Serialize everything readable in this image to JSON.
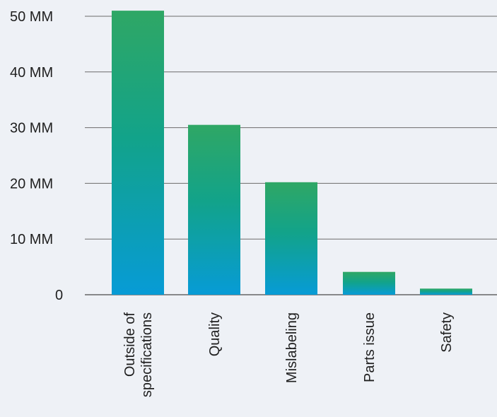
{
  "chart_data": {
    "type": "bar",
    "title": "",
    "xlabel": "",
    "ylabel": "",
    "categories": [
      [
        "Outside of",
        "specifications"
      ],
      [
        "Quality"
      ],
      [
        "Mislabeling"
      ],
      [
        "Parts issue"
      ],
      [
        "Safety"
      ]
    ],
    "values": [
      51,
      30.5,
      20.2,
      4.1,
      1.1
    ],
    "ylim": [
      0,
      50
    ],
    "yticks": [
      {
        "value": 0,
        "label": "0"
      },
      {
        "value": 10,
        "label": "10 MM"
      },
      {
        "value": 20,
        "label": "20 MM"
      },
      {
        "value": 30,
        "label": "30 MM"
      },
      {
        "value": 40,
        "label": "40 MM"
      },
      {
        "value": 50,
        "label": "50 MM"
      }
    ],
    "grid": true,
    "legend": "none",
    "colors": {
      "bar_top": "#2fa765",
      "bar_mid": "#12a38a",
      "bar_bottom": "#079bd6",
      "background": "#eef1f6"
    }
  }
}
